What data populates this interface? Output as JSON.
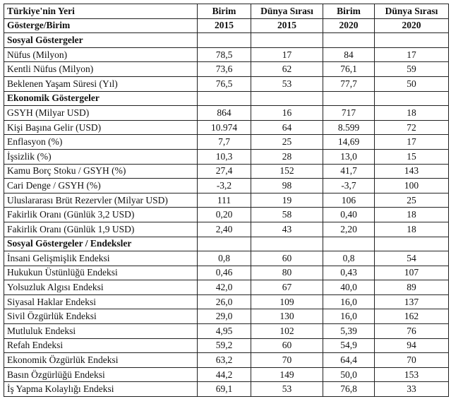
{
  "header": {
    "row1": [
      "Türkiye'nin Yeri",
      "Birim",
      "Dünya Sırası",
      "Birim",
      "Dünya Sırası"
    ],
    "row2": [
      "Gösterge/Birim",
      "2015",
      "2015",
      "2020",
      "2020"
    ]
  },
  "sections": [
    {
      "title": "Sosyal Göstergeler",
      "rows": [
        [
          "Nüfus (Milyon)",
          "78,5",
          "17",
          "84",
          "17"
        ],
        [
          "Kentli Nüfus (Milyon)",
          "73,6",
          "62",
          "76,1",
          "59"
        ],
        [
          "Beklenen Yaşam Süresi (Yıl)",
          "76,5",
          "53",
          "77,7",
          "50"
        ]
      ]
    },
    {
      "title": "Ekonomik Göstergeler",
      "rows": [
        [
          "GSYH (Milyar USD)",
          "864",
          "16",
          "717",
          "18"
        ],
        [
          "Kişi Başına Gelir (USD)",
          "10.974",
          "64",
          "8.599",
          "72"
        ],
        [
          "Enflasyon (%)",
          "7,7",
          "25",
          "14,69",
          "17"
        ],
        [
          "İşsizlik (%)",
          "10,3",
          "28",
          "13,0",
          "15"
        ],
        [
          "Kamu Borç Stoku / GSYH (%)",
          "27,4",
          "152",
          "41,7",
          "143"
        ],
        [
          "Cari Denge / GSYH (%)",
          "-3,2",
          "98",
          "-3,7",
          "100"
        ],
        [
          "Uluslararası Brüt Rezervler (Milyar USD)",
          "111",
          "19",
          "106",
          "25"
        ],
        [
          "Fakirlik Oranı (Günlük 3,2 USD)",
          "0,20",
          "58",
          "0,40",
          "18"
        ],
        [
          "Fakirlik Oranı (Günlük 1,9 USD)",
          "2,40",
          "43",
          "2,20",
          "18"
        ]
      ]
    },
    {
      "title": "Sosyal Göstergeler / Endeksler",
      "rows": [
        [
          "İnsani Gelişmişlik Endeksi",
          "0,8",
          "60",
          "0,8",
          "54"
        ],
        [
          "Hukukun Üstünlüğü Endeksi",
          "0,46",
          "80",
          "0,43",
          "107"
        ],
        [
          "Yolsuzluk Algısı Endeksi",
          "42,0",
          "67",
          "40,0",
          "89"
        ],
        [
          "Siyasal Haklar Endeksi",
          "26,0",
          "109",
          "16,0",
          "137"
        ],
        [
          "Sivil Özgürlük Endeksi",
          "29,0",
          "130",
          "16,0",
          "162"
        ],
        [
          "Mutluluk Endeksi",
          "4,95",
          "102",
          "5,39",
          "76"
        ],
        [
          "Refah Endeksi",
          "59,2",
          "60",
          "54,9",
          "94"
        ],
        [
          "Ekonomik Özgürlük Endeksi",
          "63,2",
          "70",
          "64,4",
          "70"
        ],
        [
          "Basın Özgürlüğü Endeksi",
          "44,2",
          "149",
          "50,0",
          "153"
        ],
        [
          "İş Yapma Kolaylığı Endeksi",
          "69,1",
          "53",
          "76,8",
          "33"
        ]
      ]
    }
  ]
}
